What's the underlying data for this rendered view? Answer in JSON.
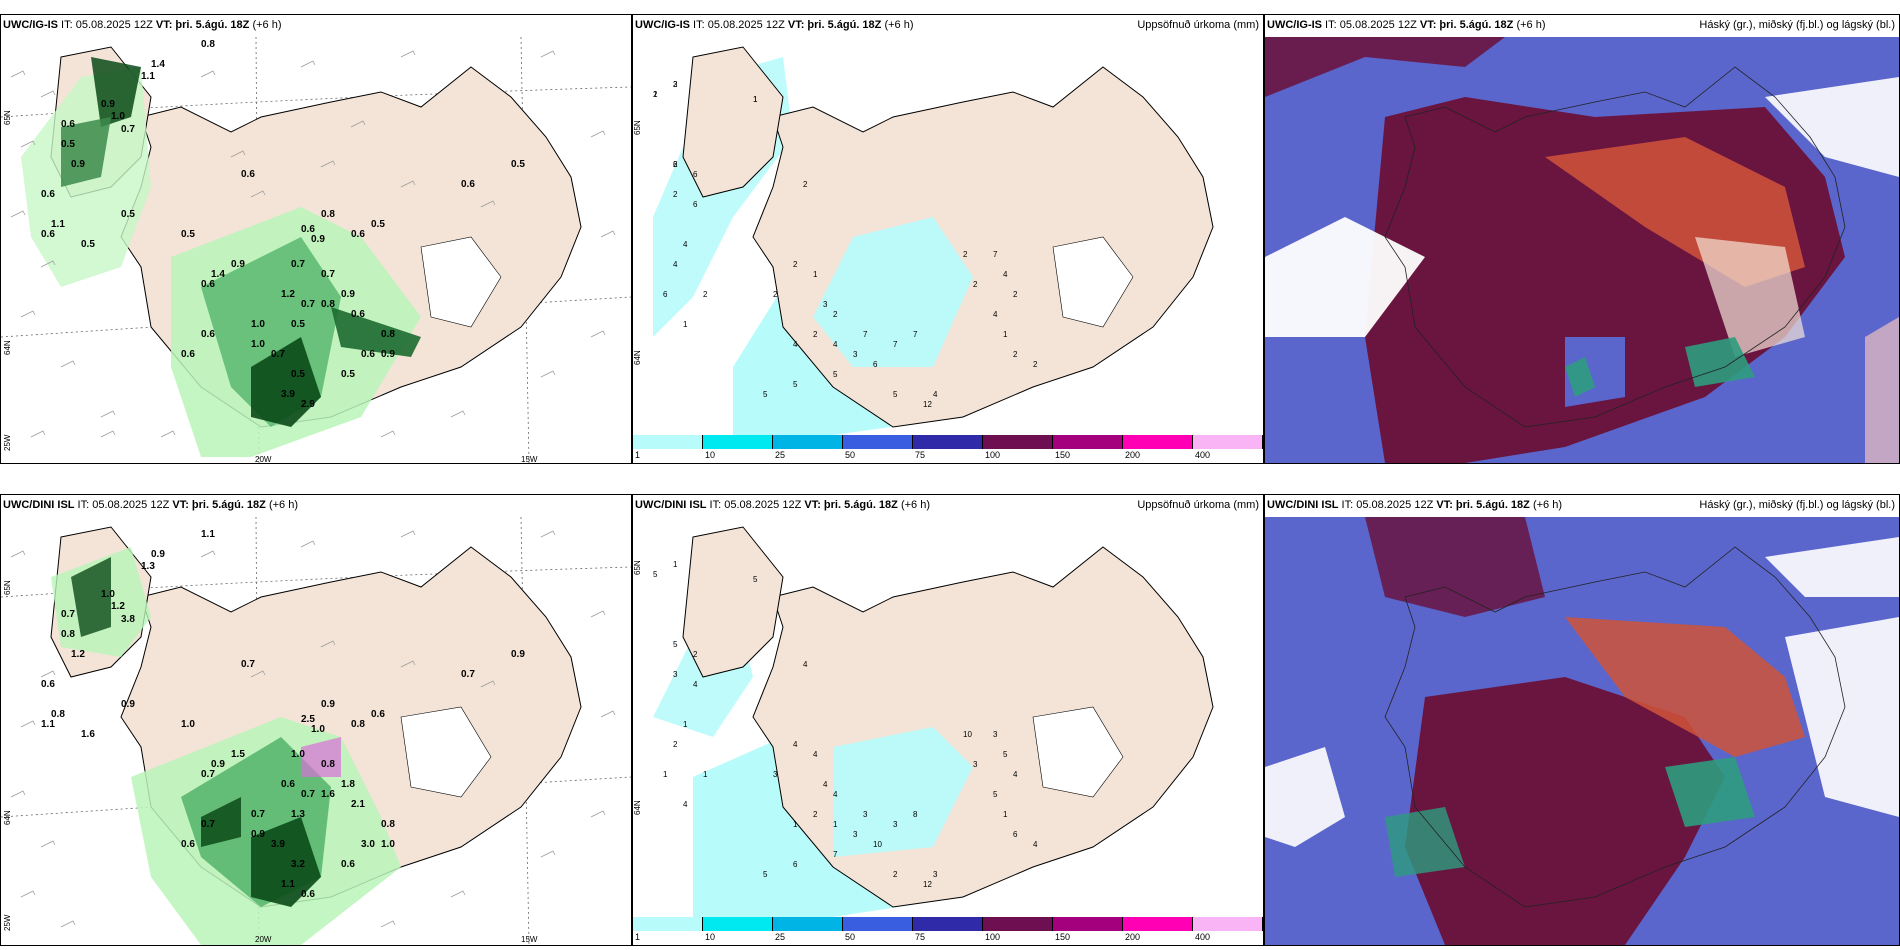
{
  "panels": {
    "top_left": {
      "header_model": "UWC/IG-IS",
      "header_it": " IT: 05.08.2025 12Z ",
      "header_vt_label": "VT: þri. 5.ágú. 18Z",
      "header_lead": " (+6 h)",
      "lat_labels": [
        "65N",
        "64N",
        "25W"
      ],
      "lon_labels": [
        "20W",
        "15W"
      ],
      "values": [
        "0.8",
        "1.4",
        "1.1",
        "0.9",
        "1.0",
        "0.7",
        "0.6",
        "0.5",
        "0.9",
        "0.6",
        "1.1",
        "0.5",
        "0.6",
        "0.5",
        "0.6",
        "1.4",
        "0.6",
        "0.9",
        "0.5",
        "0.6",
        "0.5",
        "0.5",
        "0.6",
        "0.6",
        "0.9",
        "0.8",
        "0.7",
        "0.7",
        "1.2",
        "0.7",
        "1.0",
        "0.5",
        "0.8",
        "0.9",
        "0.6",
        "0.8",
        "2.9",
        "3.9",
        "0.6",
        "0.6",
        "0.6",
        "1.0",
        "0.7",
        "0.5",
        "0.5",
        "0.9"
      ]
    },
    "top_middle": {
      "header_model": "UWC/IG-IS",
      "header_it": " IT: 05.08.2025 12Z ",
      "header_vt_label": "VT: þri. 5.ágú. 18Z",
      "header_lead": " (+6 h)",
      "title_right": "Uppsöfnuð úrkoma (mm)",
      "lat_labels": [
        "65N",
        "64N"
      ],
      "values": [
        "3",
        "1",
        "1",
        "6",
        "6",
        "2",
        "2",
        "6",
        "4",
        "4",
        "6",
        "2",
        "2",
        "1",
        "2",
        "1",
        "3",
        "2",
        "2",
        "4",
        "4",
        "3",
        "7",
        "7",
        "7",
        "6",
        "5",
        "5",
        "5",
        "5",
        "4",
        "7",
        "4",
        "2",
        "12",
        "2",
        "2",
        "1",
        "2",
        "2",
        "4",
        "2",
        "2",
        "1",
        "2"
      ]
    },
    "top_right": {
      "header_model": "UWC/IG-IS",
      "header_it": " IT: 05.08.2025 12Z ",
      "header_vt_label": "VT: þri. 5.ágú. 18Z",
      "header_lead": " (+6 h)",
      "title_right": "Háský (gr.), miðský (fj.bl.) og lágský (bl.)"
    },
    "bottom_left": {
      "header_model": "UWC/DINI ISL",
      "header_it": " IT: 05.08.2025 12Z ",
      "header_vt_label": "VT: þri. 5.ágú. 18Z",
      "header_lead": " (+6 h)",
      "lat_labels": [
        "65N",
        "64N",
        "25W"
      ],
      "lon_labels": [
        "20W",
        "15W"
      ],
      "values": [
        "1.1",
        "0.9",
        "1.3",
        "1.0",
        "1.2",
        "3.8",
        "0.7",
        "0.8",
        "1.2",
        "0.6",
        "0.8",
        "1.6",
        "1.1",
        "0.9",
        "0.7",
        "0.9",
        "0.7",
        "1.5",
        "1.0",
        "0.8",
        "0.6",
        "0.9",
        "0.7",
        "2.5",
        "1.0",
        "0.9",
        "1.0",
        "0.8",
        "0.6",
        "0.7",
        "0.7",
        "1.3",
        "1.6",
        "1.8",
        "2.1",
        "0.8",
        "0.6",
        "1.1",
        "0.7",
        "0.6",
        "3.0",
        "0.9",
        "3.9",
        "3.2",
        "0.6",
        "1.0"
      ]
    },
    "bottom_middle": {
      "header_model": "UWC/DINI ISL",
      "header_it": " IT: 05.08.2025 12Z ",
      "header_vt_label": "VT: þri. 5.ágú. 18Z",
      "header_lead": " (+6 h)",
      "title_right": "Uppsöfnuð úrkoma (mm)",
      "lat_labels": [
        "65N",
        "64N"
      ],
      "values": [
        "1",
        "5",
        "5",
        "5",
        "2",
        "4",
        "3",
        "4",
        "1",
        "2",
        "1",
        "1",
        "3",
        "4",
        "4",
        "4",
        "4",
        "4",
        "2",
        "1",
        "1",
        "3",
        "3",
        "3",
        "8",
        "10",
        "7",
        "6",
        "5",
        "2",
        "3",
        "3",
        "5",
        "4",
        "12",
        "10",
        "3",
        "1",
        "6",
        "4",
        "5"
      ]
    },
    "bottom_right": {
      "header_model": "UWC/DINI ISL",
      "header_it": " IT: 05.08.2025 12Z ",
      "header_vt_label": "VT: þri. 5.ágú. 18Z",
      "header_lead": " (+6 h)",
      "title_right": "Háský (gr.), miðský (fj.bl.) og lágský (bl.)"
    }
  },
  "colorbar": {
    "labels": [
      "1",
      "10",
      "25",
      "50",
      "75",
      "100",
      "150",
      "200",
      "400"
    ],
    "colors": [
      "#b8fbfb",
      "#00e8f0",
      "#00b4e6",
      "#3a5ee0",
      "#2e2aa8",
      "#6e0f52",
      "#a4007e",
      "#ff00b4",
      "#f8b4f4"
    ]
  },
  "colors": {
    "land": "#f3e4d7",
    "coast": "#000000",
    "precip_light": "#b8f5b8",
    "precip_mid": "#52b46a",
    "precip_dark": "#0a4a18",
    "accum_cyan": "#b8fbfb",
    "cloud_high": "#6a1440",
    "cloud_mid": "#d0533a",
    "cloud_low": "#5a66cc"
  }
}
